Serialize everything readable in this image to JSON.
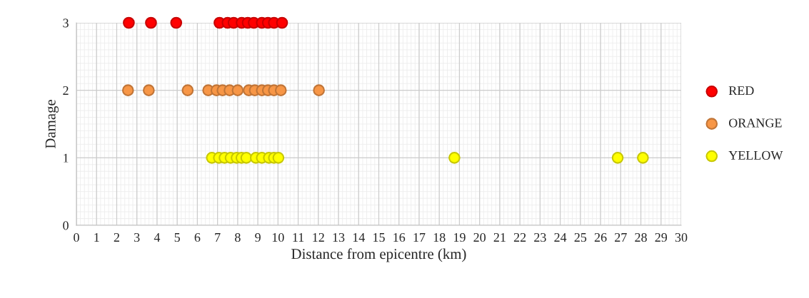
{
  "chart_data": {
    "type": "scatter",
    "xlabel": "Distance from epicentre (km)",
    "ylabel": "Damage",
    "xlim": [
      0,
      30
    ],
    "ylim": [
      0,
      3
    ],
    "xticks": [
      0,
      1,
      2,
      3,
      4,
      5,
      6,
      7,
      8,
      9,
      10,
      11,
      12,
      13,
      14,
      15,
      16,
      17,
      18,
      19,
      20,
      21,
      22,
      23,
      24,
      25,
      26,
      27,
      28,
      29,
      30
    ],
    "yticks": [
      0,
      1,
      2,
      3
    ],
    "grid": true,
    "legend": "right",
    "marker": "circle",
    "series": [
      {
        "name": "RED",
        "color": "#ff0000",
        "x": [
          2.6,
          3.7,
          4.95,
          7.1,
          7.5,
          7.8,
          8.2,
          8.5,
          8.8,
          9.2,
          9.5,
          9.8,
          10.2
        ],
        "values": [
          3,
          3,
          3,
          3,
          3,
          3,
          3,
          3,
          3,
          3,
          3,
          3,
          3
        ]
      },
      {
        "name": "ORANGE",
        "color": "#f79646",
        "x": [
          2.56,
          3.59,
          5.52,
          6.54,
          6.95,
          7.25,
          7.6,
          8.0,
          8.55,
          8.85,
          9.2,
          9.5,
          9.8,
          10.14,
          12.03
        ],
        "values": [
          2,
          2,
          2,
          2,
          2,
          2,
          2,
          2,
          2,
          2,
          2,
          2,
          2,
          2,
          2
        ]
      },
      {
        "name": "YELLOW",
        "color": "#ffff00",
        "x": [
          6.72,
          7.07,
          7.35,
          7.65,
          7.95,
          8.19,
          8.43,
          8.9,
          9.2,
          9.55,
          9.8,
          10.02,
          18.75,
          26.85,
          28.1
        ],
        "values": [
          1,
          1,
          1,
          1,
          1,
          1,
          1,
          1,
          1,
          1,
          1,
          1,
          1,
          1,
          1
        ]
      }
    ]
  }
}
